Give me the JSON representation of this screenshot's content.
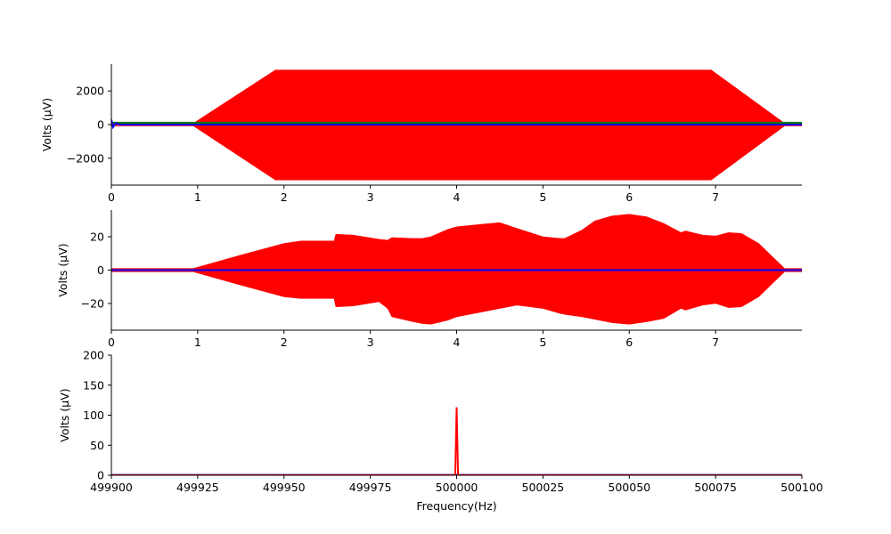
{
  "colors": {
    "red": "#ff0000",
    "green": "#008000",
    "blue": "#0000ff",
    "axis": "#000000"
  },
  "chart_data": [
    {
      "id": "top",
      "type": "line",
      "title": "",
      "xlabel": "",
      "ylabel": "Volts (μV)",
      "xlim": [
        0,
        8
      ],
      "ylim": [
        -3600,
        3600
      ],
      "xticks": [
        0,
        1,
        2,
        3,
        4,
        5,
        6,
        7
      ],
      "yticks": [
        -2000,
        0,
        2000
      ],
      "xtick_labels": [
        "0",
        "1",
        "2",
        "3",
        "4",
        "5",
        "6",
        "7"
      ],
      "ytick_labels": [
        "−2000",
        "0",
        "2000"
      ],
      "series": [
        {
          "name": "red",
          "color": "#ff0000",
          "kind": "envelope",
          "x": [
            0,
            0.95,
            1.9,
            6.95,
            7.8,
            8
          ],
          "upper": [
            80,
            80,
            3250,
            3250,
            80,
            80
          ],
          "lower": [
            -80,
            -80,
            -3300,
            -3300,
            -80,
            -80
          ]
        },
        {
          "name": "green",
          "color": "#008000",
          "kind": "line",
          "x": [
            0,
            8
          ],
          "values": [
            110,
            110
          ]
        },
        {
          "name": "blue",
          "color": "#0000ff",
          "kind": "line",
          "x": [
            0,
            0.02,
            0.05,
            0.1,
            8
          ],
          "values": [
            300,
            -150,
            80,
            0,
            0
          ]
        }
      ]
    },
    {
      "id": "middle",
      "type": "line",
      "title": "",
      "xlabel": "",
      "ylabel": "Volts (μV)",
      "xlim": [
        0,
        8
      ],
      "ylim": [
        -36,
        36
      ],
      "xticks": [
        0,
        1,
        2,
        3,
        4,
        5,
        6,
        7
      ],
      "yticks": [
        -20,
        0,
        20
      ],
      "xtick_labels": [
        "0",
        "1",
        "2",
        "3",
        "4",
        "5",
        "6",
        "7"
      ],
      "ytick_labels": [
        "−20",
        "0",
        "20"
      ],
      "series": [
        {
          "name": "red",
          "color": "#ff0000",
          "kind": "envelope",
          "x": [
            0,
            0.95,
            1.5,
            2.0,
            2.2,
            2.58,
            2.6,
            2.8,
            3.1,
            3.2,
            3.25,
            3.5,
            3.6,
            3.7,
            3.9,
            4.0,
            4.3,
            4.5,
            4.7,
            5.0,
            5.2,
            5.25,
            5.45,
            5.6,
            5.8,
            6.0,
            6.2,
            6.4,
            6.6,
            6.65,
            6.85,
            7.0,
            7.15,
            7.3,
            7.5,
            7.8,
            8
          ],
          "upper": [
            1,
            1,
            9,
            16,
            17.5,
            17.5,
            21.5,
            21,
            18.5,
            18,
            19.5,
            19,
            19,
            20,
            24.5,
            26,
            27.5,
            28.5,
            25,
            20,
            19,
            19,
            24,
            29.5,
            32.5,
            33.5,
            32,
            28,
            22.5,
            23.5,
            21,
            20.5,
            22.5,
            22,
            16,
            1,
            1
          ],
          "lower": [
            -1,
            -1,
            -9,
            -16,
            -17,
            -17,
            -22,
            -21.5,
            -19,
            -23,
            -28,
            -31,
            -32,
            -32.5,
            -30,
            -28,
            -25,
            -23,
            -21,
            -23,
            -26,
            -26.5,
            -28,
            -29.5,
            -31.5,
            -32.5,
            -31,
            -29,
            -23,
            -24,
            -21,
            -20,
            -22.5,
            -22,
            -16,
            -1,
            -1
          ]
        },
        {
          "name": "blue",
          "color": "#0000ff",
          "kind": "line",
          "x": [
            0,
            8
          ],
          "values": [
            0,
            0
          ]
        }
      ]
    },
    {
      "id": "bottom",
      "type": "line",
      "title": "",
      "xlabel": "Frequency(Hz)",
      "ylabel": "Volts (μV)",
      "xlim": [
        499900,
        500100
      ],
      "ylim": [
        0,
        200
      ],
      "xticks": [
        499900,
        499925,
        499950,
        499975,
        500000,
        500025,
        500050,
        500075,
        500100
      ],
      "yticks": [
        0,
        50,
        100,
        150,
        200
      ],
      "xtick_labels": [
        "499900",
        "499925",
        "499950",
        "499975",
        "500000",
        "500025",
        "500050",
        "500075",
        "500100"
      ],
      "ytick_labels": [
        "0",
        "50",
        "100",
        "150",
        "200"
      ],
      "series": [
        {
          "name": "blue",
          "color": "#0000ff",
          "kind": "line",
          "x": [
            499900,
            500100
          ],
          "values": [
            0.6,
            0.6
          ]
        },
        {
          "name": "red",
          "color": "#ff0000",
          "kind": "line",
          "x": [
            499900,
            499999,
            499999.6,
            500000,
            500000.4,
            500001,
            500100
          ],
          "values": [
            0,
            0.2,
            0,
            113,
            0,
            0.2,
            0
          ]
        }
      ]
    }
  ]
}
